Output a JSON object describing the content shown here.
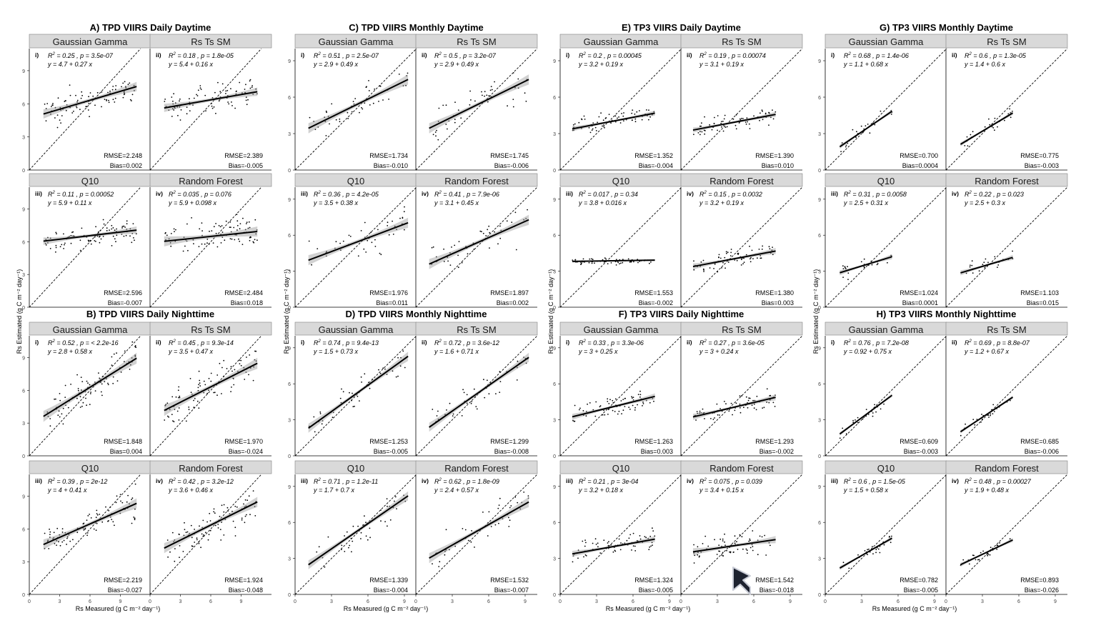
{
  "figure": {
    "y_axis_label": "Rs Estimated (g C m⁻² day⁻¹)",
    "x_axis_label": "Rs Measured (g C m⁻² day⁻¹)"
  },
  "chart_data": [
    {
      "group": "A) TPD VIIRS Daily Daytime",
      "type": "scatter",
      "xlim": [
        0,
        12
      ],
      "ylim": [
        0,
        11
      ],
      "ticks": [
        0,
        3,
        6,
        9
      ],
      "panels": [
        {
          "roman": "i)",
          "title": "Gaussian Gamma",
          "r2": "0.25",
          "p": "3.5e-07",
          "eq": "y = 4.7 + 0.27 x",
          "rmse": "RMSE=2.248",
          "bias": "Bias=0.002",
          "intercept": 4.7,
          "slope": 0.27,
          "xrange": [
            1.4,
            10.6
          ],
          "npts": 90,
          "spread": 1.0
        },
        {
          "roman": "ii)",
          "title": "Rs Ts SM",
          "r2": "0.18",
          "p": "1.8e-05",
          "eq": "y = 5.4 + 0.16 x",
          "rmse": "RMSE=2.389",
          "bias": "Bias=-0.005",
          "intercept": 5.4,
          "slope": 0.16,
          "xrange": [
            1.4,
            10.6
          ],
          "npts": 90,
          "spread": 0.9
        },
        {
          "roman": "iii)",
          "title": "Q10",
          "r2": "0.11",
          "p": "0.00052",
          "eq": "y = 5.9 + 0.11 x",
          "rmse": "RMSE=2.596",
          "bias": "Bias=-0.007",
          "intercept": 5.9,
          "slope": 0.11,
          "xrange": [
            1.4,
            10.6
          ],
          "npts": 90,
          "spread": 0.8
        },
        {
          "roman": "iv)",
          "title": "Random Forest",
          "r2": "0.035",
          "p": "0.076",
          "eq": "y = 5.9 + 0.098 x",
          "rmse": "RMSE=2.484",
          "bias": "Bias=0.018",
          "intercept": 5.9,
          "slope": 0.098,
          "xrange": [
            1.4,
            10.6
          ],
          "npts": 90,
          "spread": 1.1
        }
      ]
    },
    {
      "group": "B) TPD VIIRS Daily Nighttime",
      "type": "scatter",
      "xlim": [
        0,
        12
      ],
      "ylim": [
        0,
        11
      ],
      "ticks": [
        0,
        3,
        6,
        9
      ],
      "panels": [
        {
          "roman": "i)",
          "title": "Gaussian Gamma",
          "r2": "0.52",
          "p": "< 2.2e-16",
          "eq": "y = 2.8 + 0.58 x",
          "rmse": "RMSE=1.848",
          "bias": "Bias=0.004",
          "intercept": 2.8,
          "slope": 0.58,
          "xrange": [
            1.4,
            10.6
          ],
          "npts": 90,
          "spread": 1.2
        },
        {
          "roman": "ii)",
          "title": "Rs Ts SM",
          "r2": "0.45",
          "p": "9.3e-14",
          "eq": "y = 3.5 + 0.47 x",
          "rmse": "RMSE=1.970",
          "bias": "Bias=-0.024",
          "intercept": 3.5,
          "slope": 0.47,
          "xrange": [
            1.4,
            10.6
          ],
          "npts": 90,
          "spread": 1.2
        },
        {
          "roman": "iii)",
          "title": "Q10",
          "r2": "0.39",
          "p": "2e-12",
          "eq": "y = 4 + 0.41 x",
          "rmse": "RMSE=2.219",
          "bias": "Bias=-0.027",
          "intercept": 4.0,
          "slope": 0.41,
          "xrange": [
            1.4,
            10.6
          ],
          "npts": 90,
          "spread": 1.1
        },
        {
          "roman": "iv)",
          "title": "Random Forest",
          "r2": "0.42",
          "p": "3.2e-12",
          "eq": "y = 3.6 + 0.46 x",
          "rmse": "RMSE=1.924",
          "bias": "Bias=-0.048",
          "intercept": 3.6,
          "slope": 0.46,
          "xrange": [
            1.4,
            10.6
          ],
          "npts": 90,
          "spread": 1.1
        }
      ]
    },
    {
      "group": "C) TPD VIIRS Monthly Daytime",
      "type": "scatter",
      "xlim": [
        0,
        10
      ],
      "ylim": [
        0,
        10
      ],
      "ticks": [
        0,
        3,
        6,
        9
      ],
      "panels": [
        {
          "roman": "i)",
          "title": "Gaussian Gamma",
          "r2": "0.51",
          "p": "2.5e-07",
          "eq": "y = 2.9 + 0.49 x",
          "rmse": "RMSE=1.734",
          "bias": "Bias=-0.010",
          "intercept": 2.9,
          "slope": 0.49,
          "xrange": [
            1.1,
            9.3
          ],
          "npts": 45,
          "spread": 1.0
        },
        {
          "roman": "ii)",
          "title": "Rs Ts SM",
          "r2": "0.5",
          "p": "3.2e-07",
          "eq": "y = 2.9 + 0.49 x",
          "rmse": "RMSE=1.745",
          "bias": "Bias=-0.006",
          "intercept": 2.9,
          "slope": 0.49,
          "xrange": [
            1.1,
            9.3
          ],
          "npts": 45,
          "spread": 1.0
        },
        {
          "roman": "iii)",
          "title": "Q10",
          "r2": "0.36",
          "p": "4.2e-05",
          "eq": "y = 3.5 + 0.38 x",
          "rmse": "RMSE=1.976",
          "bias": "Bias=0.011",
          "intercept": 3.5,
          "slope": 0.38,
          "xrange": [
            1.1,
            9.3
          ],
          "npts": 45,
          "spread": 1.0
        },
        {
          "roman": "iv)",
          "title": "Random Forest",
          "r2": "0.41",
          "p": "7.9e-06",
          "eq": "y = 3.1 + 0.45 x",
          "rmse": "RMSE=1.897",
          "bias": "Bias=0.002",
          "intercept": 3.1,
          "slope": 0.45,
          "xrange": [
            1.1,
            9.3
          ],
          "npts": 45,
          "spread": 1.0
        }
      ]
    },
    {
      "group": "D) TPD VIIRS Monthly Nighttime",
      "type": "scatter",
      "xlim": [
        0,
        10
      ],
      "ylim": [
        0,
        10
      ],
      "ticks": [
        0,
        3,
        6,
        9
      ],
      "panels": [
        {
          "roman": "i)",
          "title": "Gaussian Gamma",
          "r2": "0.74",
          "p": "9.4e-13",
          "eq": "y = 1.5 + 0.73 x",
          "rmse": "RMSE=1.253",
          "bias": "Bias=-0.005",
          "intercept": 1.5,
          "slope": 0.73,
          "xrange": [
            1.1,
            9.3
          ],
          "npts": 45,
          "spread": 0.9
        },
        {
          "roman": "ii)",
          "title": "Rs Ts SM",
          "r2": "0.72",
          "p": "3.6e-12",
          "eq": "y = 1.6 + 0.71 x",
          "rmse": "RMSE=1.299",
          "bias": "Bias=-0.008",
          "intercept": 1.6,
          "slope": 0.71,
          "xrange": [
            1.1,
            9.3
          ],
          "npts": 45,
          "spread": 0.9
        },
        {
          "roman": "iii)",
          "title": "Q10",
          "r2": "0.71",
          "p": "1.2e-11",
          "eq": "y = 1.7 + 0.7 x",
          "rmse": "RMSE=1.339",
          "bias": "Bias=-0.004",
          "intercept": 1.7,
          "slope": 0.7,
          "xrange": [
            1.1,
            9.3
          ],
          "npts": 45,
          "spread": 0.9
        },
        {
          "roman": "iv)",
          "title": "Random Forest",
          "r2": "0.62",
          "p": "1.8e-09",
          "eq": "y = 2.4 + 0.57 x",
          "rmse": "RMSE=1.532",
          "bias": "Bias=-0.007",
          "intercept": 2.4,
          "slope": 0.57,
          "xrange": [
            1.1,
            9.3
          ],
          "npts": 45,
          "spread": 1.0
        }
      ]
    },
    {
      "group": "E) TP3 VIIRS Daily Daytime",
      "type": "scatter",
      "xlim": [
        0,
        10
      ],
      "ylim": [
        0,
        10
      ],
      "ticks": [
        0,
        3,
        6,
        9
      ],
      "panels": [
        {
          "roman": "i)",
          "title": "Gaussian Gamma",
          "r2": "0.2",
          "p": "0.00045",
          "eq": "y = 3.2 + 0.19 x",
          "rmse": "RMSE=1.352",
          "bias": "Bias=-0.004",
          "intercept": 3.2,
          "slope": 0.19,
          "xrange": [
            1.0,
            7.8
          ],
          "npts": 70,
          "spread": 0.5
        },
        {
          "roman": "ii)",
          "title": "Rs Ts SM",
          "r2": "0.19",
          "p": "0.00074",
          "eq": "y = 3.1 + 0.19 x",
          "rmse": "RMSE=1.390",
          "bias": "Bias=0.010",
          "intercept": 3.1,
          "slope": 0.19,
          "xrange": [
            1.0,
            7.8
          ],
          "npts": 70,
          "spread": 0.5
        },
        {
          "roman": "iii)",
          "title": "Q10",
          "r2": "0.017",
          "p": "0.34",
          "eq": "y = 3.8 + 0.016 x",
          "rmse": "RMSE=1.553",
          "bias": "Bias=-0.002",
          "intercept": 3.8,
          "slope": 0.016,
          "xrange": [
            1.0,
            7.8
          ],
          "npts": 70,
          "spread": 0.2
        },
        {
          "roman": "iv)",
          "title": "Random Forest",
          "r2": "0.15",
          "p": "0.0032",
          "eq": "y = 3.2 + 0.19 x",
          "rmse": "RMSE=1.380",
          "bias": "Bias=0.003",
          "intercept": 3.2,
          "slope": 0.19,
          "xrange": [
            1.0,
            7.8
          ],
          "npts": 70,
          "spread": 0.6
        }
      ]
    },
    {
      "group": "F) TP3 VIIRS Daily Nighttime",
      "type": "scatter",
      "xlim": [
        0,
        10
      ],
      "ylim": [
        0,
        10
      ],
      "ticks": [
        0,
        3,
        6,
        9
      ],
      "panels": [
        {
          "roman": "i)",
          "title": "Gaussian Gamma",
          "r2": "0.33",
          "p": "3.3e-06",
          "eq": "y = 3 + 0.25 x",
          "rmse": "RMSE=1.263",
          "bias": "Bias=0.003",
          "intercept": 3.0,
          "slope": 0.25,
          "xrange": [
            1.0,
            7.8
          ],
          "npts": 70,
          "spread": 0.6
        },
        {
          "roman": "ii)",
          "title": "Rs Ts SM",
          "r2": "0.27",
          "p": "3.6e-05",
          "eq": "y = 3 + 0.24 x",
          "rmse": "RMSE=1.293",
          "bias": "Bias=-0.002",
          "intercept": 3.0,
          "slope": 0.24,
          "xrange": [
            1.0,
            7.8
          ],
          "npts": 70,
          "spread": 0.6
        },
        {
          "roman": "iii)",
          "title": "Q10",
          "r2": "0.21",
          "p": "3e-04",
          "eq": "y = 3.2 + 0.18 x",
          "rmse": "RMSE=1.324",
          "bias": "Bias=-0.005",
          "intercept": 3.2,
          "slope": 0.18,
          "xrange": [
            1.0,
            7.8
          ],
          "npts": 70,
          "spread": 0.6
        },
        {
          "roman": "iv)",
          "title": "Random Forest",
          "r2": "0.075",
          "p": "0.039",
          "eq": "y = 3.4 + 0.15 x",
          "rmse": "RMSE=1.542",
          "bias": "Bias=-0.018",
          "intercept": 3.4,
          "slope": 0.15,
          "xrange": [
            1.0,
            7.8
          ],
          "npts": 70,
          "spread": 0.7
        }
      ]
    },
    {
      "group": "G) TP3 VIIRS Monthly Daytime",
      "type": "scatter",
      "xlim": [
        0,
        10
      ],
      "ylim": [
        0,
        10
      ],
      "ticks": [
        0,
        3,
        6,
        9
      ],
      "panels": [
        {
          "roman": "i)",
          "title": "Gaussian Gamma",
          "r2": "0.68",
          "p": "1.4e-06",
          "eq": "y = 1.1 + 0.68 x",
          "rmse": "RMSE=0.700",
          "bias": "Bias=0.0004",
          "intercept": 1.1,
          "slope": 0.68,
          "xrange": [
            1.2,
            5.5
          ],
          "npts": 25,
          "spread": 0.4
        },
        {
          "roman": "ii)",
          "title": "Rs Ts SM",
          "r2": "0.6",
          "p": "1.3e-05",
          "eq": "y = 1.4 + 0.6 x",
          "rmse": "RMSE=0.775",
          "bias": "Bias=-0.003",
          "intercept": 1.4,
          "slope": 0.6,
          "xrange": [
            1.2,
            5.5
          ],
          "npts": 25,
          "spread": 0.4
        },
        {
          "roman": "iii)",
          "title": "Q10",
          "r2": "0.31",
          "p": "0.0058",
          "eq": "y = 2.5 + 0.31 x",
          "rmse": "RMSE=1.024",
          "bias": "Bias=0.0001",
          "intercept": 2.5,
          "slope": 0.31,
          "xrange": [
            1.2,
            5.5
          ],
          "npts": 25,
          "spread": 0.5
        },
        {
          "roman": "iv)",
          "title": "Random Forest",
          "r2": "0.22",
          "p": "0.023",
          "eq": "y = 2.5 + 0.3 x",
          "rmse": "RMSE=1.103",
          "bias": "Bias=0.015",
          "intercept": 2.5,
          "slope": 0.3,
          "xrange": [
            1.2,
            5.5
          ],
          "npts": 25,
          "spread": 0.5
        }
      ]
    },
    {
      "group": "H) TP3 VIIRS Monthly Nighttime",
      "type": "scatter",
      "xlim": [
        0,
        10
      ],
      "ylim": [
        0,
        10
      ],
      "ticks": [
        0,
        3,
        6,
        9
      ],
      "panels": [
        {
          "roman": "i)",
          "title": "Gaussian Gamma",
          "r2": "0.76",
          "p": "7.2e-08",
          "eq": "y = 0.92 + 0.75 x",
          "rmse": "RMSE=0.609",
          "bias": "Bias=-0.003",
          "intercept": 0.92,
          "slope": 0.75,
          "xrange": [
            1.2,
            5.5
          ],
          "npts": 25,
          "spread": 0.35
        },
        {
          "roman": "ii)",
          "title": "Rs Ts SM",
          "r2": "0.69",
          "p": "8.8e-07",
          "eq": "y = 1.2 + 0.67 x",
          "rmse": "RMSE=0.685",
          "bias": "Bias=-0.006",
          "intercept": 1.2,
          "slope": 0.67,
          "xrange": [
            1.2,
            5.5
          ],
          "npts": 25,
          "spread": 0.35
        },
        {
          "roman": "iii)",
          "title": "Q10",
          "r2": "0.6",
          "p": "1.5e-05",
          "eq": "y = 1.5 + 0.58 x",
          "rmse": "RMSE=0.782",
          "bias": "Bias=-0.005",
          "intercept": 1.5,
          "slope": 0.58,
          "xrange": [
            1.2,
            5.5
          ],
          "npts": 25,
          "spread": 0.4
        },
        {
          "roman": "iv)",
          "title": "Random Forest",
          "r2": "0.48",
          "p": "0.00027",
          "eq": "y = 1.9 + 0.48 x",
          "rmse": "RMSE=0.893",
          "bias": "Bias=-0.026",
          "intercept": 1.9,
          "slope": 0.48,
          "xrange": [
            1.2,
            5.5
          ],
          "npts": 25,
          "spread": 0.4
        }
      ]
    }
  ]
}
